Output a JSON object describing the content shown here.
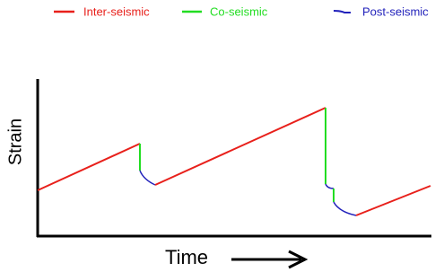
{
  "legend": [
    {
      "label": "Inter-seismic",
      "color": "#e8201b"
    },
    {
      "label": "Co-seismic",
      "color": "#22dd22"
    },
    {
      "label": "Post-seismic",
      "color": "#2222bb"
    }
  ],
  "y_axis_label": "Strain",
  "x_axis_label": "Time"
}
